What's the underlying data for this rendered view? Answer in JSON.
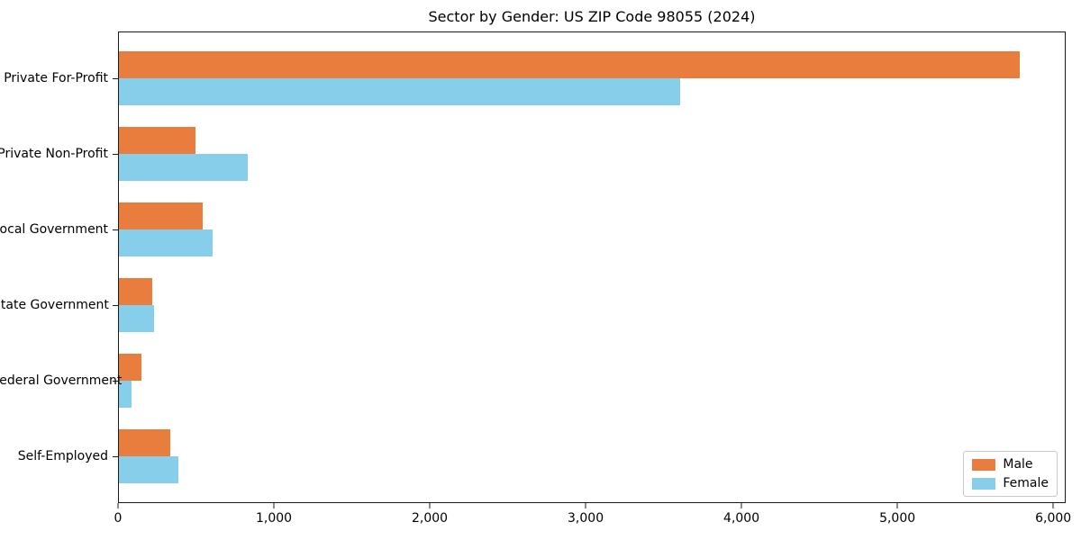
{
  "chart_data": {
    "type": "bar",
    "orientation": "horizontal",
    "title": "Sector by Gender: US ZIP Code 98055 (2024)",
    "categories": [
      "Private For-Profit",
      "Private Non-Profit",
      "Local Government",
      "State Government",
      "Federal Government",
      "Self-Employed"
    ],
    "series": [
      {
        "name": "Male",
        "color": "#e87d3e",
        "values": [
          5790,
          490,
          540,
          215,
          145,
          330
        ]
      },
      {
        "name": "Female",
        "color": "#87ceeb",
        "values": [
          3610,
          830,
          600,
          225,
          80,
          380
        ]
      }
    ],
    "xlabel": "",
    "ylabel": "",
    "xlim": [
      0,
      6080
    ],
    "xticks": [
      0,
      1000,
      2000,
      3000,
      4000,
      5000,
      6000
    ],
    "xtick_labels": [
      "0",
      "1,000",
      "2,000",
      "3,000",
      "4,000",
      "5,000",
      "6,000"
    ],
    "grid": false,
    "legend_position": "lower right"
  }
}
